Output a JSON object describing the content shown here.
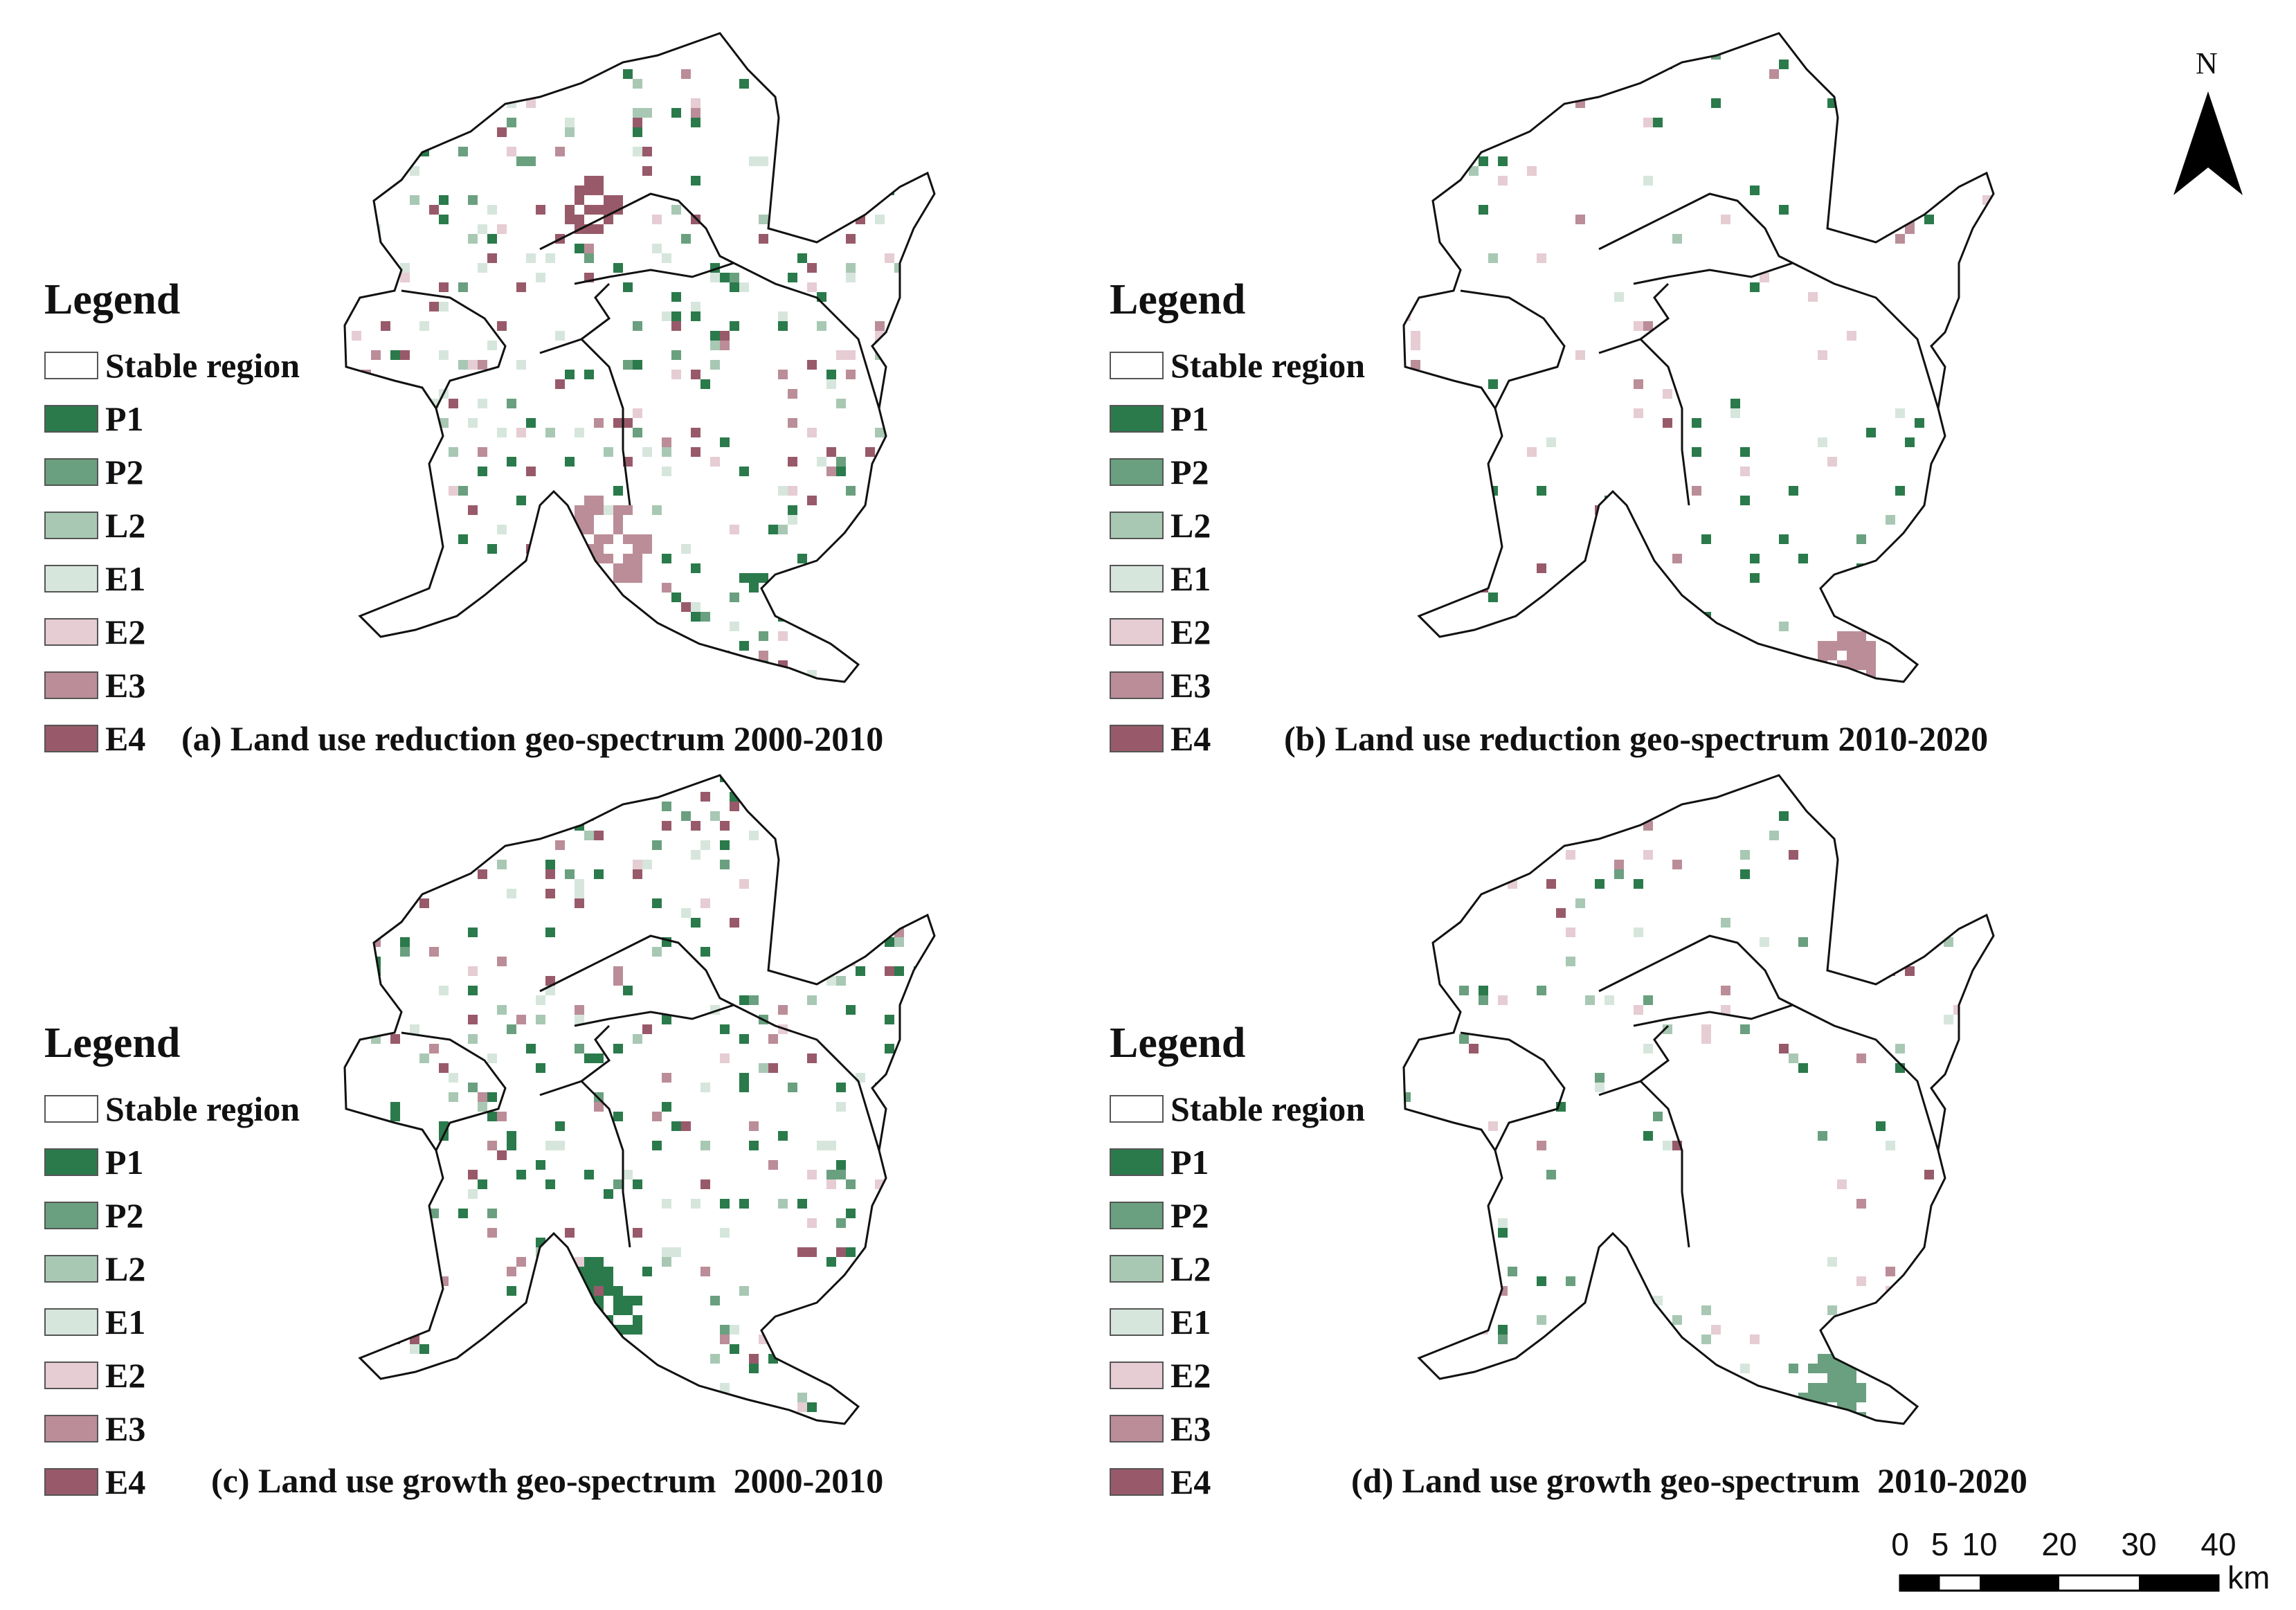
{
  "legend": {
    "title": "Legend",
    "items": [
      {
        "code": "stable",
        "label": "Stable region",
        "color": "#ffffff"
      },
      {
        "code": "P1",
        "label": "P1",
        "color": "#2b7a4b"
      },
      {
        "code": "P2",
        "label": "P2",
        "color": "#6aa07f"
      },
      {
        "code": "L2",
        "label": "L2",
        "color": "#a8c8b4"
      },
      {
        "code": "E1",
        "label": "E1",
        "color": "#d6e6dc"
      },
      {
        "code": "E2",
        "label": "E2",
        "color": "#e6ccd3"
      },
      {
        "code": "E3",
        "label": "E3",
        "color": "#bb8d98"
      },
      {
        "code": "E4",
        "label": "E4",
        "color": "#985a6a"
      }
    ]
  },
  "panels": [
    {
      "id": "a",
      "caption": "(a) Land use reduction geo-spectrum 2000-2010"
    },
    {
      "id": "b",
      "caption": "(b) Land use reduction geo-spectrum 2010-2020"
    },
    {
      "id": "c",
      "caption": "(c) Land use growth geo-spectrum  2000-2010"
    },
    {
      "id": "d",
      "caption": "(d) Land use growth geo-spectrum  2010-2020"
    }
  ],
  "north_arrow": {
    "label": "N"
  },
  "scale_bar": {
    "ticks": [
      "0",
      "5",
      "10",
      "20",
      "30",
      "40"
    ],
    "tick_values": [
      0,
      5,
      10,
      20,
      30,
      40
    ],
    "unit": "km"
  }
}
